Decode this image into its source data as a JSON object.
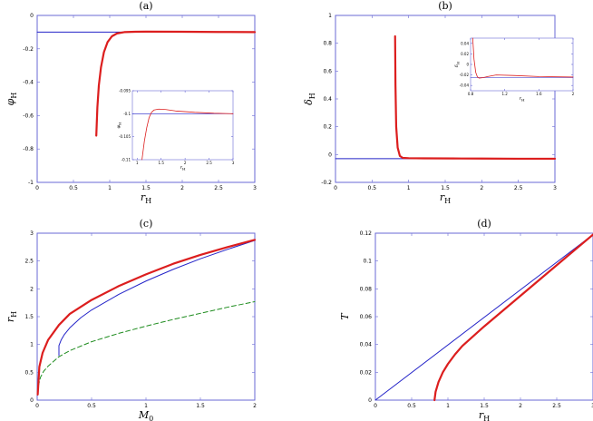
{
  "chart_data": [
    {
      "id": "a",
      "type": "line",
      "title": "(a)",
      "xlabel": "r_H",
      "ylabel": "φ_H",
      "xlim": [
        0,
        3
      ],
      "ylim": [
        -1,
        0
      ],
      "xticks": [
        "0",
        "0.5",
        "1",
        "1.5",
        "2",
        "2.5",
        "3"
      ],
      "yticks": [
        "0",
        "-0.2",
        "-0.4",
        "-0.6",
        "-0.8",
        "-1"
      ],
      "grid": false,
      "series": [
        {
          "color": "#2323c8",
          "width": 1,
          "x": [
            0,
            3
          ],
          "y": [
            -0.1,
            -0.1
          ]
        },
        {
          "color": "#dc1e1e",
          "width": 2.2,
          "x": [
            0.815,
            0.83,
            0.85,
            0.88,
            0.92,
            0.97,
            1.03,
            1.1,
            1.2,
            1.35,
            1.5,
            2.0,
            2.5,
            3.0
          ],
          "y": [
            -0.72,
            -0.55,
            -0.42,
            -0.31,
            -0.22,
            -0.16,
            -0.125,
            -0.108,
            -0.1,
            -0.098,
            -0.097,
            -0.098,
            -0.099,
            -0.1
          ]
        }
      ],
      "inset": {
        "xlim": [
          0.9,
          3
        ],
        "ylim": [
          -0.11,
          -0.095
        ],
        "xticks": [
          "1",
          "1.5",
          "2",
          "2.5",
          "3"
        ],
        "yticks": [
          "-0.095",
          "-0.1",
          "-0.105",
          "-0.11"
        ],
        "xlabel": "r_H",
        "ylabel": "φ_H",
        "series": [
          {
            "color": "#2323c8",
            "width": 0.6,
            "x": [
              0.9,
              3
            ],
            "y": [
              -0.1,
              -0.1
            ]
          },
          {
            "color": "#dc1e1e",
            "width": 0.8,
            "x": [
              1.1,
              1.15,
              1.2,
              1.25,
              1.3,
              1.35,
              1.45,
              1.6,
              1.8,
              2.2,
              2.6,
              3.0
            ],
            "y": [
              -0.11,
              -0.106,
              -0.103,
              -0.1008,
              -0.0997,
              -0.0992,
              -0.099,
              -0.0991,
              -0.0994,
              -0.0997,
              -0.0999,
              -0.1
            ]
          }
        ]
      }
    },
    {
      "id": "b",
      "type": "line",
      "title": "(b)",
      "xlabel": "r_H",
      "ylabel": "δ_H",
      "xlim": [
        0,
        3
      ],
      "ylim": [
        -0.2,
        1
      ],
      "xticks": [
        "0",
        "0.5",
        "1",
        "1.5",
        "2",
        "2.5",
        "3"
      ],
      "yticks": [
        "1",
        "0.8",
        "0.6",
        "0.4",
        "0.2",
        "0",
        "-0.2"
      ],
      "grid": false,
      "series": [
        {
          "color": "#2323c8",
          "width": 1,
          "x": [
            0,
            3
          ],
          "y": [
            -0.03,
            -0.03
          ]
        },
        {
          "color": "#dc1e1e",
          "width": 2.2,
          "x": [
            0.815,
            0.82,
            0.83,
            0.85,
            0.88,
            0.92,
            1.0,
            1.2,
            1.6,
            2.0,
            2.5,
            3.0
          ],
          "y": [
            0.85,
            0.5,
            0.2,
            0.05,
            -0.01,
            -0.024,
            -0.026,
            -0.027,
            -0.028,
            -0.029,
            -0.03,
            -0.03
          ]
        }
      ],
      "inset": {
        "xlim": [
          0.8,
          2
        ],
        "ylim": [
          -0.05,
          0.05
        ],
        "xticks": [
          "0.8",
          "1.2",
          "1.6",
          "2"
        ],
        "yticks": [
          "0.04",
          "0.02",
          "0",
          "-0.02",
          "-0.04"
        ],
        "xlabel": "r_H",
        "ylabel": "δ_H",
        "series": [
          {
            "color": "#2323c8",
            "width": 0.6,
            "x": [
              0.8,
              2
            ],
            "y": [
              -0.025,
              -0.025
            ]
          },
          {
            "color": "#dc1e1e",
            "width": 0.8,
            "x": [
              0.825,
              0.84,
              0.86,
              0.88,
              0.9,
              0.95,
              1.0,
              1.1,
              1.3,
              1.6,
              2.0
            ],
            "y": [
              0.05,
              0.01,
              -0.015,
              -0.024,
              -0.026,
              -0.025,
              -0.023,
              -0.02,
              -0.021,
              -0.023,
              -0.024
            ]
          }
        ]
      }
    },
    {
      "id": "c",
      "type": "line",
      "title": "(c)",
      "xlabel": "M_0",
      "ylabel": "r_H",
      "xlim": [
        0,
        2
      ],
      "ylim": [
        0,
        3
      ],
      "xticks": [
        "0",
        "0.5",
        "1",
        "1.5",
        "2"
      ],
      "yticks": [
        "3",
        "2.5",
        "2",
        "1.5",
        "1",
        "0.5",
        "0"
      ],
      "grid": false,
      "series": [
        {
          "color": "#1e8c1e",
          "width": 1,
          "dashed": true,
          "x": [
            0.01,
            0.03,
            0.06,
            0.1,
            0.2,
            0.3,
            0.5,
            0.75,
            1.0,
            1.25,
            1.5,
            1.75,
            2.0
          ],
          "y": [
            0.25,
            0.41,
            0.52,
            0.61,
            0.78,
            0.89,
            1.05,
            1.2,
            1.33,
            1.45,
            1.56,
            1.67,
            1.77
          ]
        },
        {
          "color": "#2323c8",
          "width": 1,
          "x": [
            0.2,
            0.2,
            0.22,
            0.25,
            0.3,
            0.4,
            0.5,
            0.75,
            1.0,
            1.25,
            1.5,
            1.75,
            2.0
          ],
          "y": [
            0.8,
            0.98,
            1.08,
            1.18,
            1.3,
            1.48,
            1.62,
            1.9,
            2.14,
            2.35,
            2.54,
            2.71,
            2.87
          ]
        },
        {
          "color": "#dc1e1e",
          "width": 2.2,
          "x": [
            0.005,
            0.02,
            0.05,
            0.1,
            0.2,
            0.3,
            0.5,
            0.75,
            1.0,
            1.25,
            1.5,
            1.75,
            2.0
          ],
          "y": [
            0.1,
            0.6,
            0.85,
            1.08,
            1.35,
            1.55,
            1.8,
            2.05,
            2.26,
            2.45,
            2.61,
            2.75,
            2.88
          ]
        }
      ]
    },
    {
      "id": "d",
      "type": "line",
      "title": "(d)",
      "xlabel": "r_H",
      "ylabel": "T",
      "xlim": [
        0,
        3
      ],
      "ylim": [
        0,
        0.12
      ],
      "xticks": [
        "0",
        "0.5",
        "1",
        "1.5",
        "2",
        "2.5",
        "3"
      ],
      "yticks": [
        "0.12",
        "0.1",
        "0.08",
        "0.06",
        "0.04",
        "0.02",
        "0"
      ],
      "grid": false,
      "series": [
        {
          "color": "#2323c8",
          "width": 1,
          "x": [
            0,
            3
          ],
          "y": [
            0,
            0.119
          ]
        },
        {
          "color": "#dc1e1e",
          "width": 2.2,
          "x": [
            0.815,
            0.83,
            0.87,
            0.93,
            1.0,
            1.1,
            1.2,
            1.35,
            1.5,
            1.75,
            2.0,
            2.25,
            2.5,
            2.75,
            3.0
          ],
          "y": [
            0,
            0.006,
            0.013,
            0.02,
            0.026,
            0.033,
            0.039,
            0.046,
            0.053,
            0.064,
            0.075,
            0.086,
            0.097,
            0.108,
            0.119
          ]
        }
      ]
    }
  ]
}
